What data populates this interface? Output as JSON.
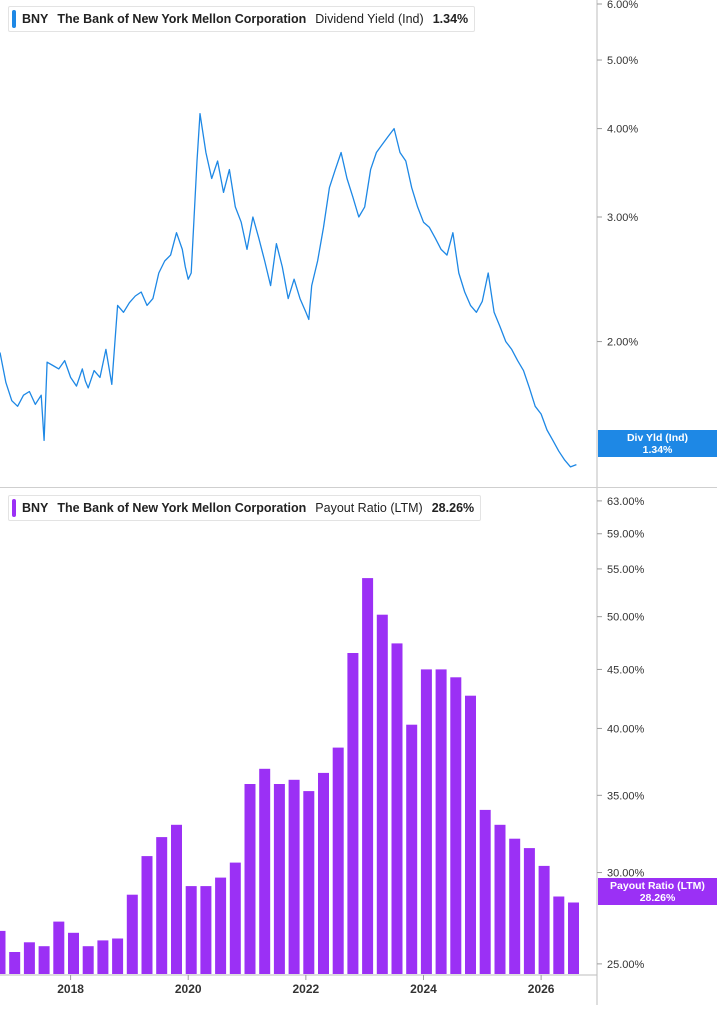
{
  "chart_data": [
    {
      "type": "line",
      "ticker": "BNY",
      "company": "The Bank of New York Mellon Corporation",
      "metric": "Dividend Yield (Ind)",
      "last_value_label": "1.34%",
      "tag_label": "Div Yld (Ind)",
      "color": "#1e88e5",
      "y_scale": "log",
      "ylim": [
        1.25,
        6.0
      ],
      "xlim": [
        2016.8,
        2026.95
      ],
      "y_ticks": [
        "2.00%",
        "3.00%",
        "4.00%",
        "5.00%",
        "6.00%"
      ],
      "y_tick_values": [
        2.0,
        3.0,
        4.0,
        5.0,
        6.0
      ],
      "series": [
        {
          "x": [
            2016.8,
            2016.9,
            2017.0,
            2017.1,
            2017.2,
            2017.3,
            2017.4,
            2017.5,
            2017.55,
            2017.6,
            2017.7,
            2017.8,
            2017.9,
            2018.0,
            2018.1,
            2018.2,
            2018.25,
            2018.3,
            2018.4,
            2018.5,
            2018.6,
            2018.7,
            2018.8,
            2018.9,
            2019.0,
            2019.1,
            2019.2,
            2019.3,
            2019.4,
            2019.5,
            2019.6,
            2019.7,
            2019.8,
            2019.9,
            2019.95,
            2020.0,
            2020.05,
            2020.1,
            2020.15,
            2020.2,
            2020.3,
            2020.4,
            2020.5,
            2020.6,
            2020.7,
            2020.8,
            2020.9,
            2021.0,
            2021.1,
            2021.2,
            2021.3,
            2021.4,
            2021.5,
            2021.6,
            2021.7,
            2021.8,
            2021.9,
            2022.0,
            2022.05,
            2022.1,
            2022.2,
            2022.3,
            2022.4,
            2022.5,
            2022.6,
            2022.7,
            2022.8,
            2022.9,
            2023.0,
            2023.1,
            2023.2,
            2023.3,
            2023.4,
            2023.5,
            2023.6,
            2023.7,
            2023.8,
            2023.9,
            2024.0,
            2024.1,
            2024.2,
            2024.3,
            2024.4,
            2024.5,
            2024.6,
            2024.7,
            2024.8,
            2024.9,
            2025.0,
            2025.1,
            2025.2,
            2025.3,
            2025.4,
            2025.5,
            2025.6,
            2025.7,
            2025.8,
            2025.9,
            2026.0,
            2026.1,
            2026.2,
            2026.3,
            2026.4,
            2026.5,
            2026.6
          ],
          "values": [
            1.93,
            1.75,
            1.65,
            1.62,
            1.68,
            1.7,
            1.63,
            1.68,
            1.45,
            1.87,
            1.85,
            1.83,
            1.88,
            1.78,
            1.73,
            1.83,
            1.76,
            1.72,
            1.82,
            1.78,
            1.95,
            1.74,
            2.25,
            2.2,
            2.27,
            2.32,
            2.35,
            2.25,
            2.3,
            2.5,
            2.6,
            2.65,
            2.85,
            2.7,
            2.55,
            2.45,
            2.5,
            3.0,
            3.6,
            4.2,
            3.7,
            3.4,
            3.6,
            3.25,
            3.5,
            3.1,
            2.95,
            2.7,
            3.0,
            2.8,
            2.6,
            2.4,
            2.75,
            2.55,
            2.3,
            2.45,
            2.3,
            2.2,
            2.15,
            2.4,
            2.6,
            2.9,
            3.3,
            3.5,
            3.7,
            3.4,
            3.2,
            3.0,
            3.1,
            3.5,
            3.7,
            3.8,
            3.9,
            4.0,
            3.7,
            3.6,
            3.3,
            3.1,
            2.95,
            2.9,
            2.8,
            2.7,
            2.65,
            2.85,
            2.5,
            2.35,
            2.25,
            2.2,
            2.28,
            2.5,
            2.2,
            2.1,
            2.0,
            1.95,
            1.88,
            1.82,
            1.72,
            1.62,
            1.58,
            1.5,
            1.45,
            1.4,
            1.36,
            1.33,
            1.34
          ]
        }
      ]
    },
    {
      "type": "bar",
      "ticker": "BNY",
      "company": "The Bank of New York Mellon Corporation",
      "metric": "Payout Ratio (LTM)",
      "last_value_label": "28.26%",
      "tag_label": "Payout Ratio (LTM)",
      "color": "#9b30f5",
      "y_scale": "log",
      "ylim": [
        24.5,
        64.0
      ],
      "xlim": [
        2016.8,
        2026.95
      ],
      "y_ticks": [
        "25.00%",
        "30.00%",
        "35.00%",
        "40.00%",
        "45.00%",
        "50.00%",
        "55.00%",
        "59.00%",
        "63.00%"
      ],
      "y_tick_values": [
        25.0,
        30.0,
        35.0,
        40.0,
        45.0,
        50.0,
        55.0,
        59.0,
        63.0
      ],
      "x_ticks": [
        "2018",
        "2020",
        "2022",
        "2024",
        "2026"
      ],
      "x_tick_values": [
        2018,
        2020,
        2022,
        2024,
        2026
      ],
      "x": [
        2016.8,
        2017.05,
        2017.3,
        2017.55,
        2017.8,
        2018.05,
        2018.3,
        2018.55,
        2018.8,
        2019.05,
        2019.3,
        2019.55,
        2019.8,
        2020.05,
        2020.3,
        2020.55,
        2020.8,
        2021.05,
        2021.3,
        2021.55,
        2021.8,
        2022.05,
        2022.3,
        2022.55,
        2022.8,
        2023.05,
        2023.3,
        2023.55,
        2023.8,
        2024.05,
        2024.3,
        2024.55,
        2024.8,
        2025.05,
        2025.3,
        2025.55,
        2025.8,
        2026.05,
        2026.3,
        2026.55
      ],
      "values": [
        26.7,
        25.6,
        26.1,
        25.9,
        27.2,
        26.6,
        25.9,
        26.2,
        26.3,
        28.7,
        31.0,
        32.2,
        33.0,
        29.2,
        29.2,
        29.7,
        30.6,
        35.8,
        36.9,
        35.8,
        36.1,
        35.3,
        36.6,
        38.5,
        46.5,
        54.0,
        50.2,
        47.4,
        40.3,
        45.0,
        45.0,
        44.3,
        42.7,
        34.0,
        33.0,
        32.1,
        31.5,
        30.4,
        28.6,
        28.26
      ]
    }
  ]
}
